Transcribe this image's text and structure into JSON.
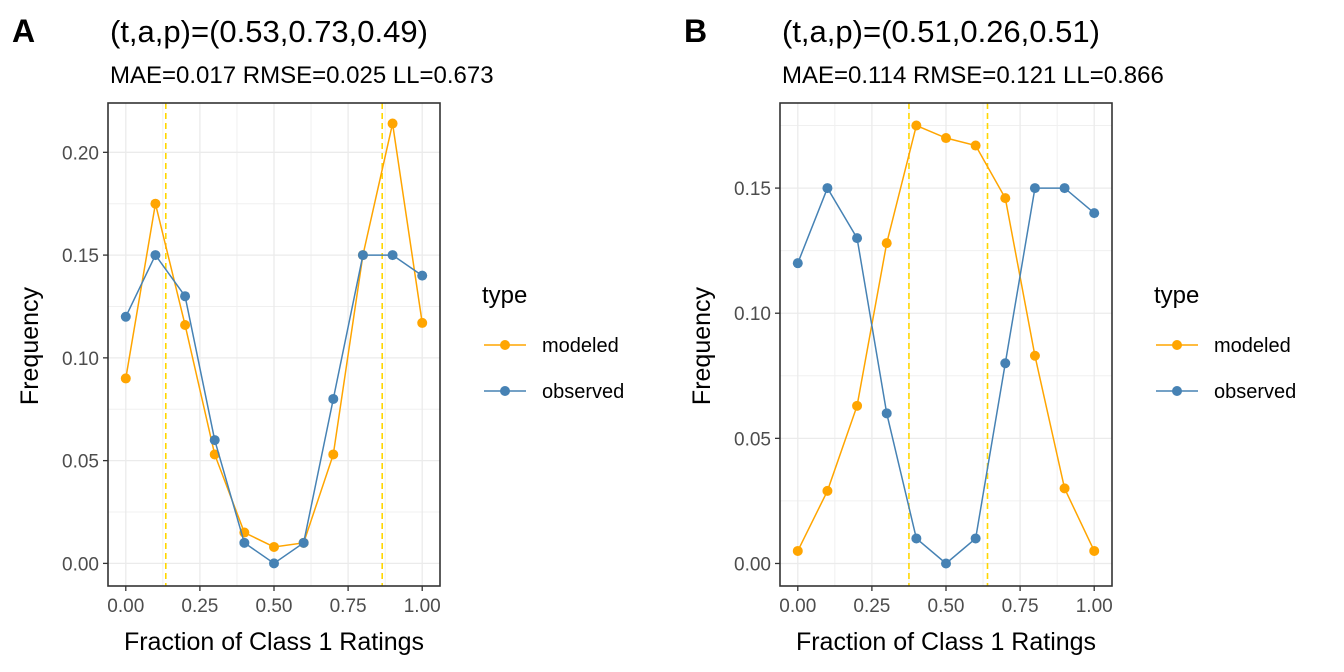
{
  "chart_data": [
    {
      "type": "line",
      "panel": "A",
      "title": "(t,a,p)=(0.53,0.73,0.49)",
      "subtitle": "MAE=0.017  RMSE=0.025  LL=0.673",
      "xlabel": "Fraction of Class 1 Ratings",
      "ylabel": "Frequency",
      "xlim": [
        -0.06,
        1.06
      ],
      "ylim": [
        -0.011,
        0.224
      ],
      "xticks": [
        0,
        0.25,
        0.5,
        0.75,
        1
      ],
      "xtick_labels": [
        "0.00",
        "0.25",
        "0.50",
        "0.75",
        "1.00"
      ],
      "yticks": [
        0,
        0.05,
        0.1,
        0.15,
        0.2
      ],
      "ytick_labels": [
        "0.00",
        "0.05",
        "0.10",
        "0.15",
        "0.20"
      ],
      "grid": true,
      "vlines": [
        0.135,
        0.865
      ],
      "vline_color": "#FFD700",
      "x": [
        0,
        0.1,
        0.2,
        0.3,
        0.4,
        0.5,
        0.6,
        0.7,
        0.8,
        0.9,
        1.0
      ],
      "series": [
        {
          "name": "modeled",
          "color": "#FFA500",
          "values": [
            0.09,
            0.175,
            0.116,
            0.053,
            0.015,
            0.008,
            0.01,
            0.053,
            0.15,
            0.214,
            0.117
          ]
        },
        {
          "name": "observed",
          "color": "#4682B4",
          "values": [
            0.12,
            0.15,
            0.13,
            0.06,
            0.01,
            0.0,
            0.01,
            0.08,
            0.15,
            0.15,
            0.14
          ]
        }
      ],
      "legend": {
        "title": "type",
        "position": "right"
      }
    },
    {
      "type": "line",
      "panel": "B",
      "title": "(t,a,p)=(0.51,0.26,0.51)",
      "subtitle": "MAE=0.114  RMSE=0.121  LL=0.866",
      "xlabel": "Fraction of Class 1 Ratings",
      "ylabel": "Frequency",
      "xlim": [
        -0.06,
        1.06
      ],
      "ylim": [
        -0.009,
        0.184
      ],
      "xticks": [
        0,
        0.25,
        0.5,
        0.75,
        1
      ],
      "xtick_labels": [
        "0.00",
        "0.25",
        "0.50",
        "0.75",
        "1.00"
      ],
      "yticks": [
        0,
        0.05,
        0.1,
        0.15
      ],
      "ytick_labels": [
        "0.00",
        "0.05",
        "0.10",
        "0.15"
      ],
      "grid": true,
      "vlines": [
        0.375,
        0.64
      ],
      "vline_color": "#FFD700",
      "x": [
        0,
        0.1,
        0.2,
        0.3,
        0.4,
        0.5,
        0.6,
        0.7,
        0.8,
        0.9,
        1.0
      ],
      "series": [
        {
          "name": "modeled",
          "color": "#FFA500",
          "values": [
            0.005,
            0.029,
            0.063,
            0.128,
            0.175,
            0.17,
            0.167,
            0.146,
            0.083,
            0.03,
            0.005
          ]
        },
        {
          "name": "observed",
          "color": "#4682B4",
          "values": [
            0.12,
            0.15,
            0.13,
            0.06,
            0.01,
            0.0,
            0.01,
            0.08,
            0.15,
            0.15,
            0.14
          ]
        }
      ],
      "legend": {
        "title": "type",
        "position": "right"
      }
    }
  ]
}
